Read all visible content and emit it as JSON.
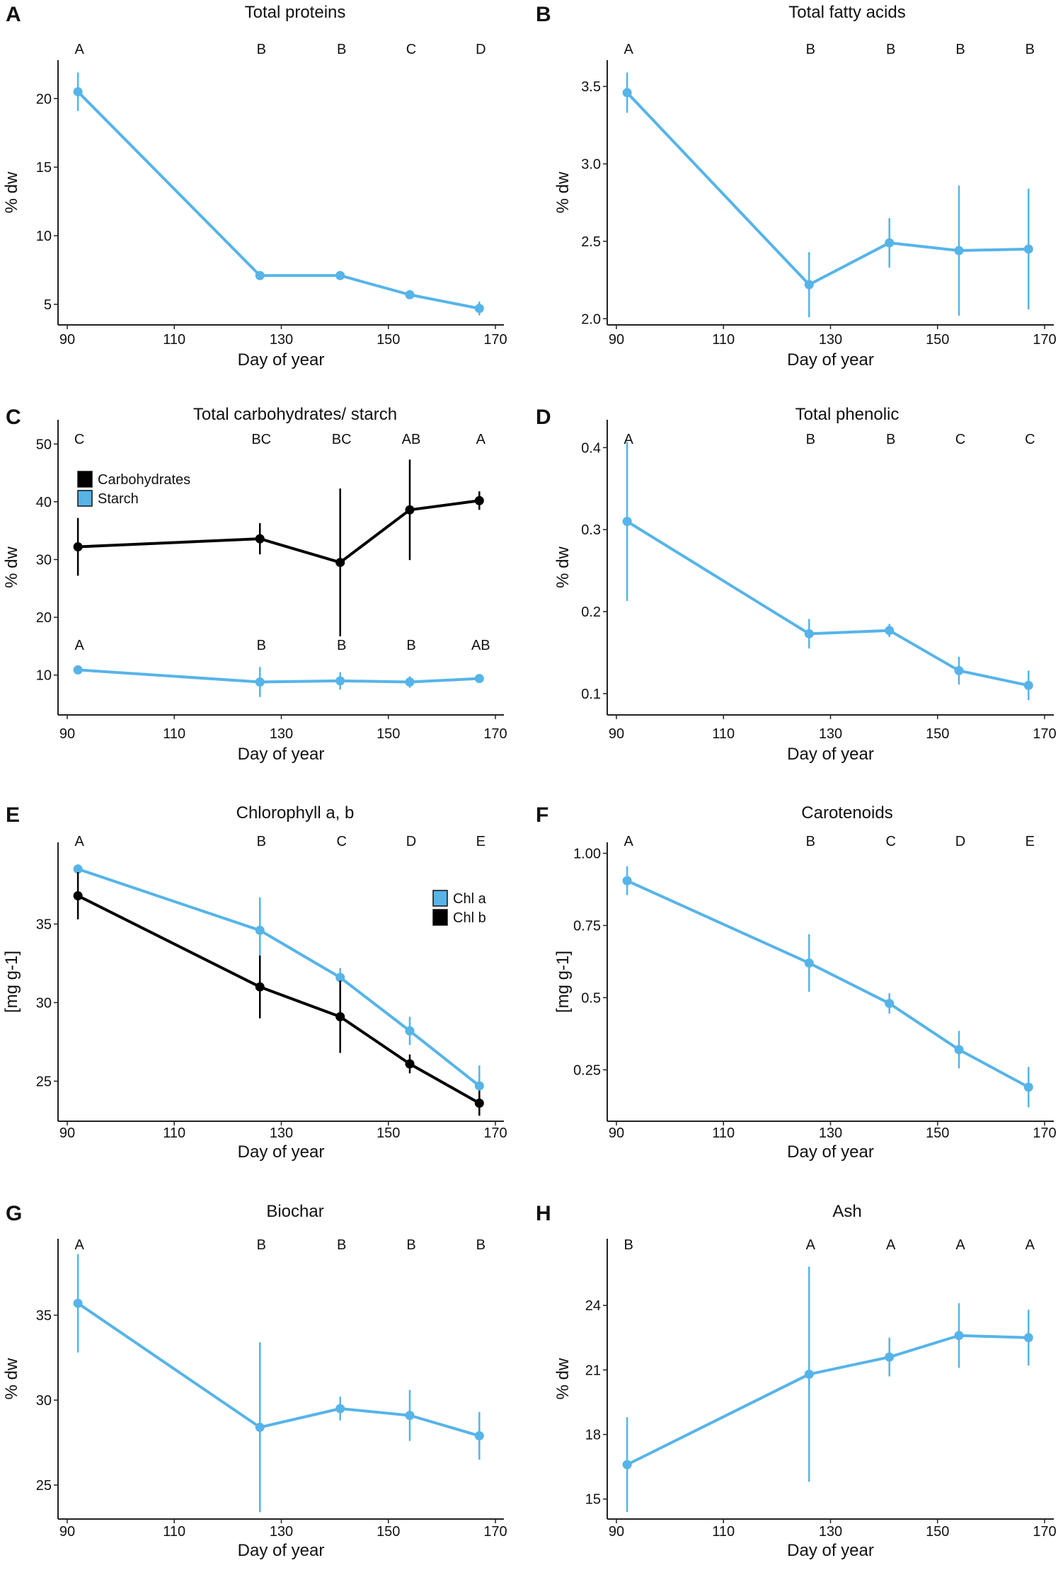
{
  "chart_data": [
    {
      "panel": "A",
      "type": "line",
      "title": "Total proteins",
      "xlabel": "Day of year",
      "ylabel": "% dw",
      "xlim": [
        90,
        170
      ],
      "xticks": [
        90,
        110,
        130,
        150,
        170
      ],
      "ylim": [
        3.5,
        22.8
      ],
      "yticks": [
        5,
        10,
        15,
        20
      ],
      "ytick_labels": [
        "5",
        "10",
        "15",
        "20"
      ],
      "grid": false,
      "legend": null,
      "series": [
        {
          "color": "#56B4E9",
          "x": [
            92,
            126,
            141,
            154,
            167
          ],
          "y": [
            20.5,
            7.1,
            7.1,
            5.7,
            4.7
          ],
          "err": [
            1.4,
            0.2,
            0.2,
            0.2,
            0.5
          ],
          "letters": [
            "A",
            "B",
            "B",
            "C",
            "D"
          ]
        }
      ]
    },
    {
      "panel": "B",
      "type": "line",
      "title": "Total fatty acids",
      "xlabel": "Day of year",
      "ylabel": "% dw",
      "xlim": [
        90,
        170
      ],
      "xticks": [
        90,
        110,
        130,
        150,
        170
      ],
      "ylim": [
        1.96,
        3.67
      ],
      "yticks": [
        2.0,
        2.5,
        3.0,
        3.5
      ],
      "ytick_labels": [
        "2.0",
        "2.5",
        "3.0",
        "3.5"
      ],
      "grid": false,
      "legend": null,
      "series": [
        {
          "color": "#56B4E9",
          "x": [
            92,
            126,
            141,
            154,
            167
          ],
          "y": [
            3.46,
            2.22,
            2.49,
            2.44,
            2.45
          ],
          "err": [
            0.13,
            0.21,
            0.16,
            0.42,
            0.39
          ],
          "letters": [
            "A",
            "B",
            "B",
            "B",
            "B"
          ]
        }
      ]
    },
    {
      "panel": "C",
      "type": "line",
      "title": "Total carbohydrates/ starch",
      "xlabel": "Day of year",
      "ylabel": "% dw",
      "xlim": [
        90,
        170
      ],
      "xticks": [
        90,
        110,
        130,
        150,
        170
      ],
      "ylim": [
        3.1,
        54.2
      ],
      "yticks": [
        10,
        20,
        30,
        40,
        50
      ],
      "ytick_labels": [
        "10",
        "20",
        "30",
        "40",
        "50"
      ],
      "grid": false,
      "legend": "top-left",
      "series": [
        {
          "name": "Carbohydrates",
          "color": "#000000",
          "x": [
            92,
            126,
            141,
            154,
            167
          ],
          "y": [
            32.2,
            33.6,
            29.5,
            38.6,
            40.2
          ],
          "err": [
            5.0,
            2.7,
            12.8,
            8.7,
            1.6
          ],
          "letters": [
            "C",
            "BC",
            "BC",
            "AB",
            "A"
          ]
        },
        {
          "name": "Starch",
          "color": "#56B4E9",
          "x": [
            92,
            126,
            141,
            154,
            167
          ],
          "y": [
            10.9,
            8.8,
            9.0,
            8.8,
            9.4
          ],
          "err": [
            0.5,
            2.6,
            1.5,
            1.0,
            0.5
          ],
          "letters": [
            "A",
            "B",
            "B",
            "B",
            "AB"
          ]
        }
      ]
    },
    {
      "panel": "D",
      "type": "line",
      "title": "Total phenolic",
      "xlabel": "Day of year",
      "ylabel": "% dw",
      "xlim": [
        90,
        170
      ],
      "xticks": [
        90,
        110,
        130,
        150,
        170
      ],
      "ylim": [
        0.074,
        0.434
      ],
      "yticks": [
        0.1,
        0.2,
        0.3,
        0.4
      ],
      "ytick_labels": [
        "0.1",
        "0.2",
        "0.3",
        "0.4"
      ],
      "grid": false,
      "legend": null,
      "series": [
        {
          "color": "#56B4E9",
          "x": [
            92,
            126,
            141,
            154,
            167
          ],
          "y": [
            0.31,
            0.173,
            0.177,
            0.128,
            0.11
          ],
          "err": [
            0.097,
            0.018,
            0.008,
            0.017,
            0.018
          ],
          "letters": [
            "A",
            "B",
            "B",
            "C",
            "C"
          ]
        }
      ]
    },
    {
      "panel": "E",
      "type": "line",
      "title": "Chlorophyll a, b",
      "xlabel": "Day of year",
      "ylabel": "[mg g-1]",
      "xlim": [
        90,
        170
      ],
      "xticks": [
        90,
        110,
        130,
        150,
        170
      ],
      "ylim": [
        22.45,
        40.2
      ],
      "yticks": [
        25,
        30,
        35
      ],
      "ytick_labels": [
        "25",
        "30",
        "35"
      ],
      "grid": false,
      "legend": "top-right",
      "series": [
        {
          "name": "Chl a",
          "color": "#56B4E9",
          "x": [
            92,
            126,
            141,
            154,
            167
          ],
          "y": [
            38.5,
            34.6,
            31.6,
            28.2,
            24.7
          ],
          "err": [
            0.3,
            2.1,
            0.6,
            0.9,
            1.3
          ],
          "letters": [
            "A",
            "B",
            "C",
            "D",
            "E"
          ]
        },
        {
          "name": "Chl b",
          "color": "#000000",
          "x": [
            92,
            126,
            141,
            154,
            167
          ],
          "y": [
            36.8,
            31.0,
            29.1,
            26.1,
            23.6
          ],
          "err": [
            1.5,
            2.0,
            2.3,
            0.6,
            0.8
          ]
        }
      ]
    },
    {
      "panel": "F",
      "type": "line",
      "title": "Carotenoids",
      "xlabel": "Day of year",
      "ylabel": "[mg g-1]",
      "xlim": [
        90,
        170
      ],
      "xticks": [
        90,
        110,
        130,
        150,
        170
      ],
      "ylim": [
        0.072,
        1.038
      ],
      "yticks": [
        0.25,
        0.5,
        0.75,
        1.0
      ],
      "ytick_labels": [
        "0.25",
        "0.5",
        "0.75",
        "1.00"
      ],
      "grid": false,
      "legend": null,
      "series": [
        {
          "color": "#56B4E9",
          "x": [
            92,
            126,
            141,
            154,
            167
          ],
          "y": [
            0.905,
            0.62,
            0.48,
            0.32,
            0.19
          ],
          "err": [
            0.05,
            0.1,
            0.035,
            0.065,
            0.07
          ],
          "letters": [
            "A",
            "B",
            "C",
            "D",
            "E"
          ]
        }
      ]
    },
    {
      "panel": "G",
      "type": "line",
      "title": "Biochar",
      "xlabel": "Day of year",
      "ylabel": "% dw",
      "xlim": [
        90,
        170
      ],
      "xticks": [
        90,
        110,
        130,
        150,
        170
      ],
      "ylim": [
        23.0,
        39.5
      ],
      "yticks": [
        25,
        30,
        35
      ],
      "ytick_labels": [
        "25",
        "30",
        "35"
      ],
      "grid": false,
      "legend": null,
      "series": [
        {
          "color": "#56B4E9",
          "x": [
            92,
            126,
            141,
            154,
            167
          ],
          "y": [
            35.7,
            28.4,
            29.5,
            29.1,
            27.9
          ],
          "err": [
            2.9,
            5.0,
            0.7,
            1.5,
            1.4
          ],
          "letters": [
            "A",
            "B",
            "B",
            "B",
            "B"
          ]
        }
      ]
    },
    {
      "panel": "H",
      "type": "line",
      "title": "Ash",
      "xlabel": "Day of year",
      "ylabel": "% dw",
      "xlim": [
        90,
        170
      ],
      "xticks": [
        90,
        110,
        130,
        150,
        170
      ],
      "ylim": [
        14.07,
        27.1
      ],
      "yticks": [
        15,
        18,
        21,
        24
      ],
      "ytick_labels": [
        "15",
        "18",
        "21",
        "24"
      ],
      "grid": false,
      "legend": null,
      "series": [
        {
          "color": "#56B4E9",
          "x": [
            92,
            126,
            141,
            154,
            167
          ],
          "y": [
            16.6,
            20.8,
            21.6,
            22.6,
            22.5
          ],
          "err": [
            2.2,
            5.0,
            0.9,
            1.5,
            1.3
          ],
          "letters": [
            "B",
            "A",
            "A",
            "A",
            "A"
          ]
        }
      ]
    }
  ]
}
